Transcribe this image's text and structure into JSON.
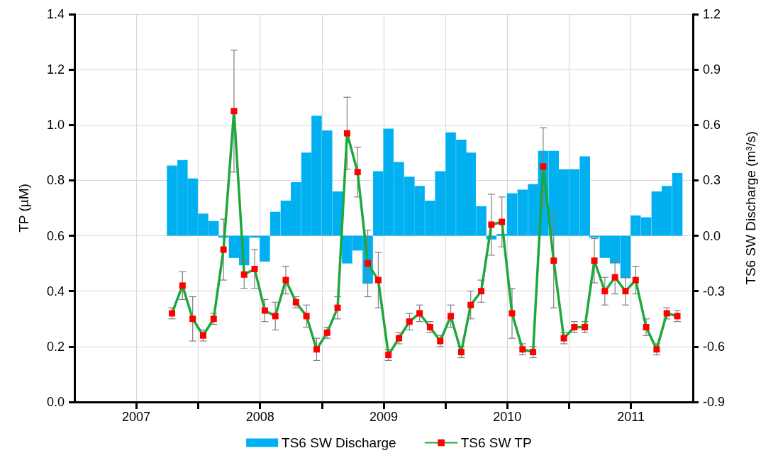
{
  "chart_data": {
    "type": "bar",
    "ylabel": "TP (µM)",
    "y2label": "TS6 SW Discharge (m³/s)",
    "x": [
      "2007-10-16",
      "2007-11-16",
      "2007-12-16",
      "2008-01-16",
      "2008-02-16",
      "2008-03-16",
      "2008-04-16",
      "2008-05-16",
      "2008-06-16",
      "2008-07-16",
      "2008-08-16",
      "2008-09-16",
      "2008-10-16",
      "2008-11-16",
      "2008-12-16",
      "2009-01-16",
      "2009-02-16",
      "2009-03-16",
      "2009-04-16",
      "2009-05-16",
      "2009-06-16",
      "2009-07-16",
      "2009-08-16",
      "2009-09-16",
      "2009-10-16",
      "2009-11-16",
      "2009-12-16",
      "2010-01-16",
      "2010-02-16",
      "2010-03-16",
      "2010-04-16",
      "2010-05-16",
      "2010-06-16",
      "2010-07-16",
      "2010-08-16",
      "2010-09-16",
      "2010-10-16",
      "2010-11-16",
      "2010-12-16",
      "2011-01-16",
      "2011-02-16",
      "2011-03-16",
      "2011-04-16",
      "2011-05-16",
      "2011-06-16",
      "2011-07-16",
      "2011-08-16",
      "2011-09-16",
      "2011-10-16",
      "2011-11-16"
    ],
    "series": [
      {
        "name": "TS6 SW Discharge",
        "axis": "y2",
        "color": "#00b0f0",
        "values": [
          0.38,
          0.41,
          0.31,
          0.12,
          0.08,
          -0.01,
          -0.12,
          -0.16,
          -0.01,
          -0.14,
          0.13,
          0.19,
          0.29,
          0.45,
          0.65,
          0.57,
          0.24,
          -0.15,
          -0.08,
          -0.26,
          0.35,
          0.58,
          0.4,
          0.32,
          0.27,
          0.19,
          0.35,
          0.56,
          0.52,
          0.45,
          0.16,
          -0.02,
          0.01,
          0.23,
          0.25,
          0.28,
          0.46,
          0.46,
          0.36,
          0.36,
          0.43,
          -0.01,
          -0.12,
          -0.15,
          -0.23,
          0.11,
          0.1,
          0.24,
          0.27,
          0.34
        ]
      },
      {
        "name": "TS6 SW TP",
        "type": "line",
        "color": "#1ea83c",
        "marker": "square",
        "line_style": "solid",
        "colors": [
          "#ff0000",
          "#ff0000",
          "#ff0000",
          "#ff0000",
          "#ff0000",
          "#ff0000",
          "#ff0000",
          "#ff0000",
          "#ff0000",
          "#ff0000",
          "#ff0000",
          "#ff0000",
          "#ff0000",
          "#ff0000",
          "#ff0000",
          "#ff0000",
          "#ff0000",
          "#ff0000",
          "#ff0000",
          "#ff0000",
          "#ff0000",
          "#ff0000",
          "#ff0000",
          "#ff0000",
          "#ff0000",
          "#ff0000",
          "#ff0000",
          "#ff0000",
          "#ff0000",
          "#ff0000",
          "#ff0000",
          "#ff0000",
          "#ff0000",
          "#ff0000",
          "#ff0000",
          "#ff0000",
          "#ff0000",
          "#ff0000",
          "#ff0000",
          "#ff0000",
          "#ff0000",
          "#ff0000",
          "#ff0000",
          "#ff0000",
          "#ff0000",
          "#ff0000",
          "#ff0000",
          "#ff0000",
          "#ff0000",
          "#ff0000"
        ],
        "values": [
          0.32,
          0.42,
          0.3,
          0.24,
          0.3,
          0.55,
          1.05,
          0.46,
          0.48,
          0.33,
          0.31,
          0.44,
          0.36,
          0.31,
          0.19,
          0.25,
          0.34,
          0.97,
          0.83,
          0.5,
          0.44,
          0.17,
          0.23,
          0.29,
          0.32,
          0.27,
          0.22,
          0.31,
          0.18,
          0.35,
          0.4,
          0.64,
          0.65,
          0.32,
          0.19,
          0.18,
          0.85,
          0.51,
          0.23,
          0.27,
          0.27,
          0.51,
          0.4,
          0.45,
          0.4,
          0.44,
          0.27,
          0.19,
          0.32,
          0.31
        ],
        "errors": [
          0.02,
          0.05,
          0.08,
          0.02,
          0.02,
          0.11,
          0.22,
          0.05,
          0.07,
          0.04,
          0.05,
          0.05,
          0.02,
          0.04,
          0.04,
          0.02,
          0.04,
          0.13,
          0.09,
          0.12,
          0.1,
          0.02,
          0.02,
          0.03,
          0.03,
          0.02,
          0.02,
          0.04,
          0.02,
          0.05,
          0.04,
          0.11,
          0.09,
          0.09,
          0.02,
          0.02,
          0.14,
          0.17,
          0.02,
          0.02,
          0.02,
          0.08,
          0.05,
          0.06,
          0.05,
          0.05,
          0.03,
          0.02,
          0.02,
          0.02
        ]
      }
    ],
    "xlim": [
      "2007-01-01",
      "2012-01-01"
    ],
    "xticks": [
      {
        "value": "2007-07-02",
        "label": "2007"
      },
      {
        "value": "2008-01-01",
        "label": null
      },
      {
        "value": "2008-07-02",
        "label": "2008"
      },
      {
        "value": "2009-01-01",
        "label": null
      },
      {
        "value": "2009-07-02",
        "label": "2009"
      },
      {
        "value": "2010-01-01",
        "label": null
      },
      {
        "value": "2010-07-02",
        "label": "2010"
      },
      {
        "value": "2011-01-01",
        "label": null
      },
      {
        "value": "2011-07-02",
        "label": "2011"
      }
    ],
    "ylim": [
      0,
      1.4
    ],
    "yticks": [
      {
        "value": 0,
        "label": "0.0"
      },
      0.2,
      0.4,
      0.6,
      0.8,
      {
        "value": 1,
        "label": "1.0"
      },
      1.2,
      1.4
    ],
    "y2lim": [
      -0.9,
      1.2
    ],
    "y2ticks": [
      -0.9,
      -0.6,
      -0.3,
      {
        "value": 0,
        "label": "0.0"
      },
      0.3,
      0.6,
      0.9,
      1.2
    ],
    "grid": true,
    "legend": "bottom"
  }
}
